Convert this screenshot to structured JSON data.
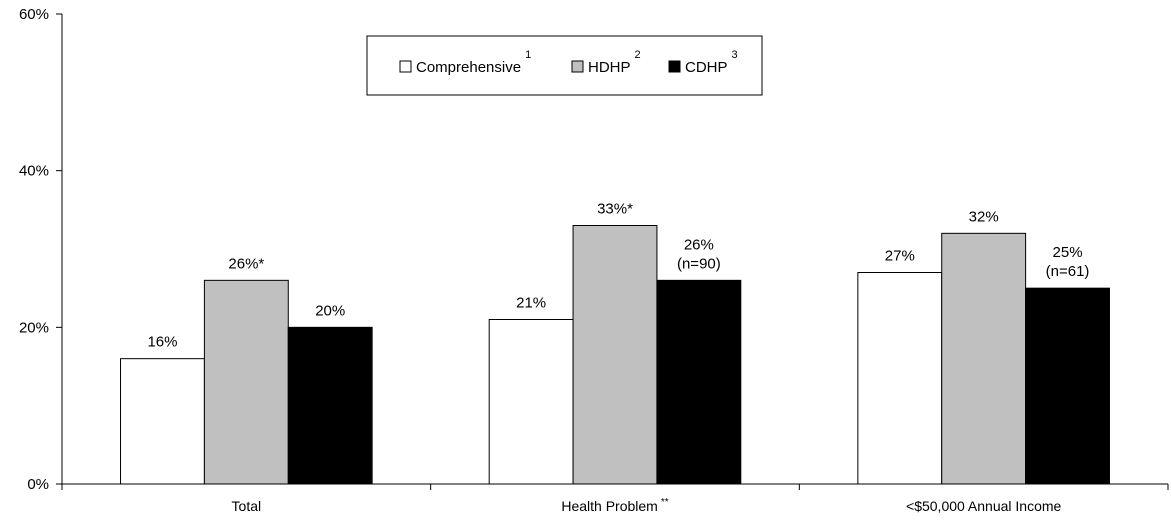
{
  "chart_data": {
    "type": "bar",
    "categories": [
      "Total",
      "Health Problem",
      "<$50,000 Annual Income"
    ],
    "category_superscripts": [
      "",
      "**",
      ""
    ],
    "series": [
      {
        "name": "Comprehensive",
        "superscript": "1",
        "color": "#ffffff",
        "values": [
          16,
          21,
          27
        ]
      },
      {
        "name": "HDHP",
        "superscript": "2",
        "color": "#c0c0c0",
        "values": [
          26,
          33,
          32
        ]
      },
      {
        "name": "CDHP",
        "superscript": "3",
        "color": "#000000",
        "values": [
          20,
          26,
          25
        ]
      }
    ],
    "data_labels": [
      [
        [
          "16%"
        ],
        [
          "21%"
        ],
        [
          "27%"
        ]
      ],
      [
        [
          "26%*"
        ],
        [
          "33%*"
        ],
        [
          "32%"
        ]
      ],
      [
        [
          "20%"
        ],
        [
          "26%",
          "(n=90)"
        ],
        [
          "25%",
          "(n=61)"
        ]
      ]
    ],
    "yticks": [
      "0%",
      "20%",
      "40%",
      "60%"
    ],
    "ylim": [
      0,
      60
    ],
    "title": "",
    "xlabel": "",
    "ylabel": "",
    "grid": false,
    "legend_position": "top-center"
  }
}
